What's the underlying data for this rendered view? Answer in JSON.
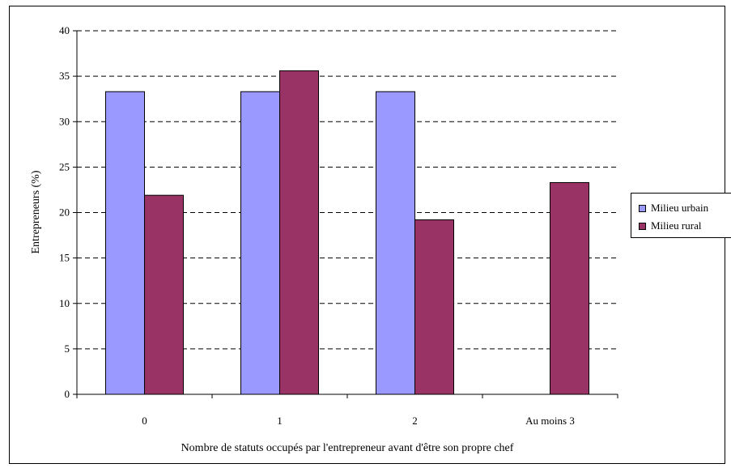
{
  "chart_data": {
    "type": "bar",
    "title": "",
    "xlabel": "Nombre de statuts occupés par l'entrepreneur avant d'être son propre chef",
    "ylabel": "Entrepreneurs (%)",
    "ylim": [
      0,
      40
    ],
    "yticks": [
      "0",
      "5",
      "10",
      "15",
      "20",
      "25",
      "30",
      "35",
      "40"
    ],
    "grid": true,
    "legend_position": "right",
    "categories": [
      "0",
      "1",
      "2",
      "Au moins 3"
    ],
    "series": [
      {
        "name": "Milieu urbain",
        "color": "#9999ff",
        "values": [
          33.3,
          33.3,
          33.3,
          0
        ]
      },
      {
        "name": "Milieu rural",
        "color": "#993366",
        "values": [
          21.9,
          35.6,
          19.2,
          23.3
        ]
      }
    ]
  }
}
